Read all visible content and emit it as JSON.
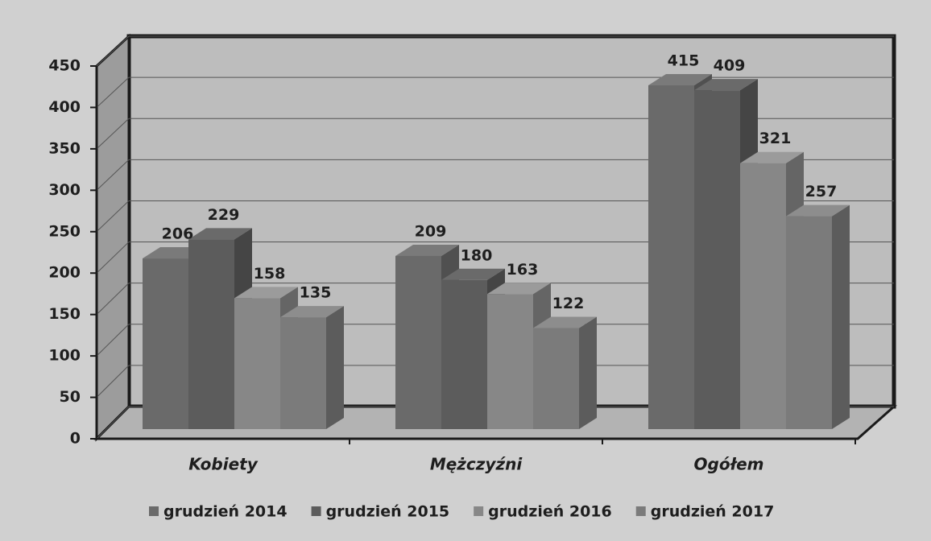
{
  "chart_data": {
    "type": "bar3d",
    "categories": [
      "Kobiety",
      "Mężczyźni",
      "Ogółem"
    ],
    "series": [
      {
        "name": "grudzień 2014",
        "color": "#6a6a6a",
        "values": [
          206,
          209,
          415
        ]
      },
      {
        "name": "grudzień 2015",
        "color": "#5c5c5c",
        "values": [
          229,
          180,
          409
        ]
      },
      {
        "name": "grudzień 2016",
        "color": "#878787",
        "values": [
          158,
          163,
          321
        ]
      },
      {
        "name": "grudzień 2017",
        "color": "#7b7b7b",
        "values": [
          135,
          122,
          257
        ]
      }
    ],
    "ylim": [
      0,
      450
    ],
    "yticks": [
      0,
      50,
      100,
      150,
      200,
      250,
      300,
      350,
      400,
      450
    ],
    "grid": true,
    "legend": "bottom"
  }
}
